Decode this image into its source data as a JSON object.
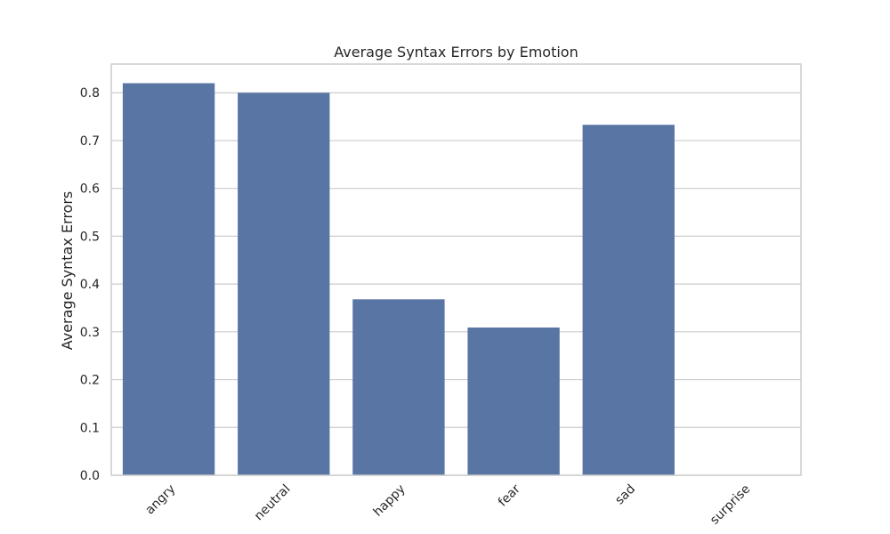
{
  "chart_data": {
    "type": "bar",
    "title": "Average Syntax Errors by Emotion",
    "xlabel": "",
    "ylabel": "Average Syntax Errors",
    "categories": [
      "angry",
      "neutral",
      "happy",
      "fear",
      "sad",
      "surprise"
    ],
    "values": [
      0.82,
      0.8,
      0.368,
      0.309,
      0.733,
      0.0
    ],
    "ylim": [
      0,
      0.86
    ],
    "yticks": [
      0.0,
      0.1,
      0.2,
      0.3,
      0.4,
      0.5,
      0.6,
      0.7,
      0.8
    ],
    "ytick_labels": [
      "0.0",
      "0.1",
      "0.2",
      "0.3",
      "0.4",
      "0.5",
      "0.6",
      "0.7",
      "0.8"
    ],
    "grid": "horizontal",
    "bar_color": "#5875a4",
    "grid_color": "#cccccc",
    "spine_color": "#cccccc",
    "text_color": "#262626",
    "xtick_rotation_deg": 45
  }
}
